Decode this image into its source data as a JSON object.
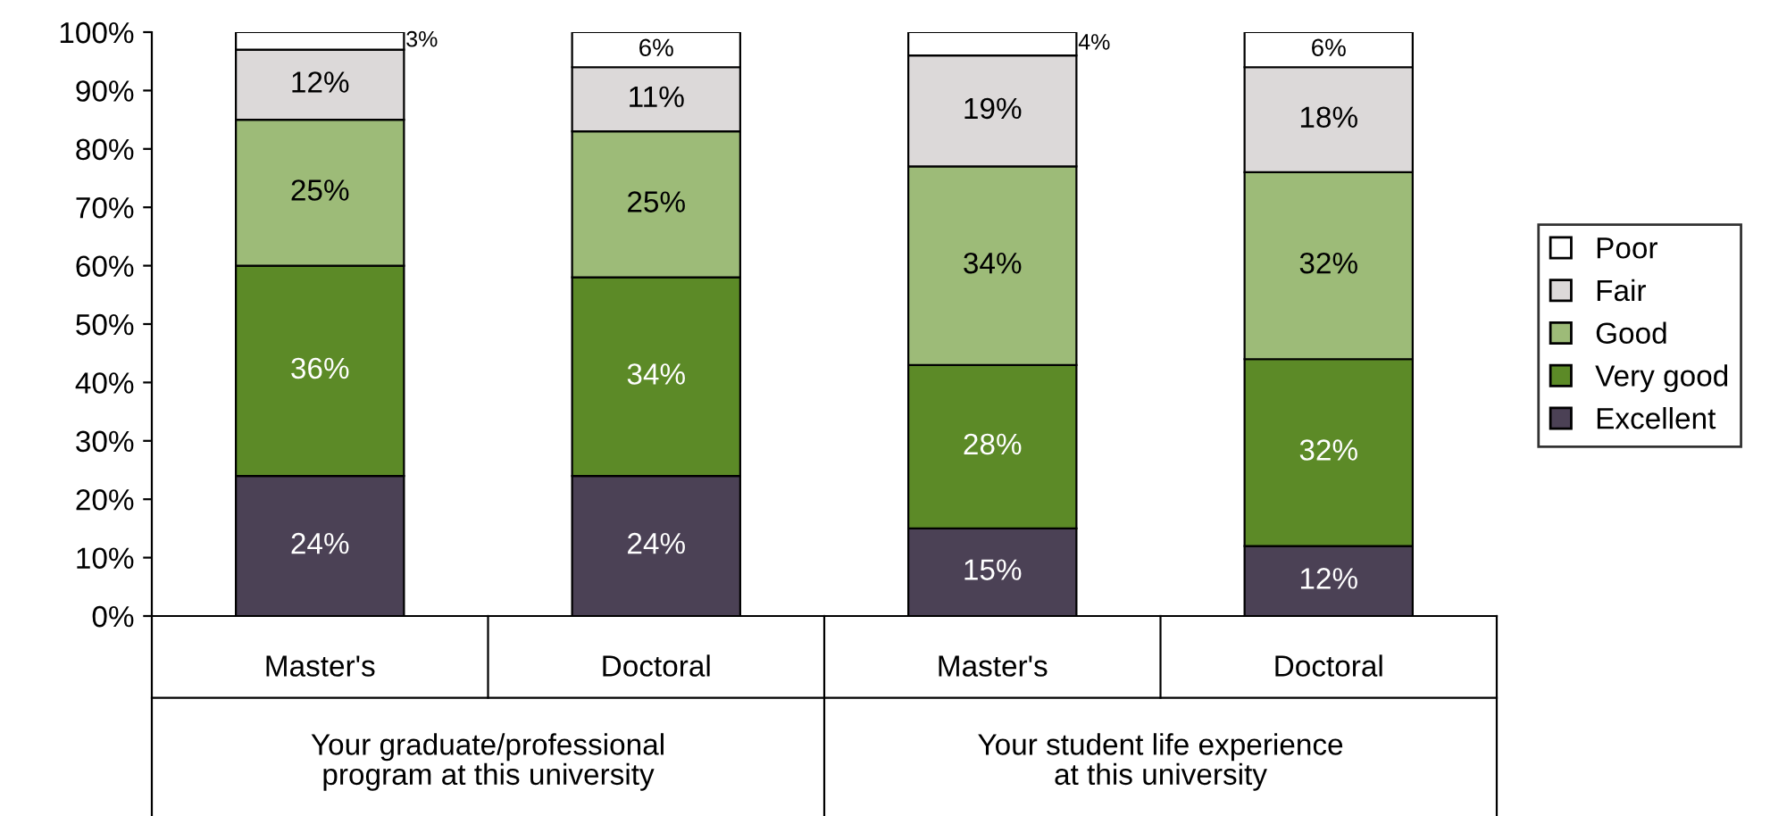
{
  "chart_data": {
    "type": "bar",
    "stacked": true,
    "legend": "right",
    "grid": false,
    "categories": [
      "Master's",
      "Doctoral",
      "Master's",
      "Doctoral"
    ],
    "series": [
      {
        "name": "Excellent",
        "color": "#4b4155",
        "values": [
          24,
          24,
          15,
          12
        ],
        "value_labels": [
          "24%",
          "24%",
          "15%",
          "12%"
        ]
      },
      {
        "name": "Very good",
        "color": "#5c8a27",
        "values": [
          36,
          34,
          28,
          32
        ],
        "value_labels": [
          "36%",
          "34%",
          "28%",
          "32%"
        ]
      },
      {
        "name": "Good",
        "color": "#9dbb78",
        "values": [
          25,
          25,
          34,
          32
        ],
        "value_labels": [
          "25%",
          "25%",
          "34%",
          "32%"
        ]
      },
      {
        "name": "Fair",
        "color": "#dcd9d9",
        "values": [
          12,
          11,
          19,
          18
        ],
        "value_labels": [
          "12%",
          "11%",
          "19%",
          "18%"
        ]
      },
      {
        "name": "Poor",
        "color": "#ffffff",
        "values": [
          3,
          6,
          4,
          6
        ],
        "value_labels": [
          "3%",
          "6%",
          "4%",
          "6%"
        ]
      }
    ],
    "ylim": [
      0,
      100
    ],
    "yticks": [
      {
        "value": 0,
        "label": "0%"
      },
      {
        "value": 10,
        "label": "10%"
      },
      {
        "value": 20,
        "label": "20%"
      },
      {
        "value": 30,
        "label": "30%"
      },
      {
        "value": 40,
        "label": "40%"
      },
      {
        "value": 50,
        "label": "50%"
      },
      {
        "value": 60,
        "label": "60%"
      },
      {
        "value": 70,
        "label": "70%"
      },
      {
        "value": 80,
        "label": "80%"
      },
      {
        "value": 90,
        "label": "90%"
      },
      {
        "value": 100,
        "label": "100%"
      }
    ],
    "annotations": [
      "Your graduate/professional\nprogram at this university",
      "Your student life experience\nat this university"
    ]
  }
}
